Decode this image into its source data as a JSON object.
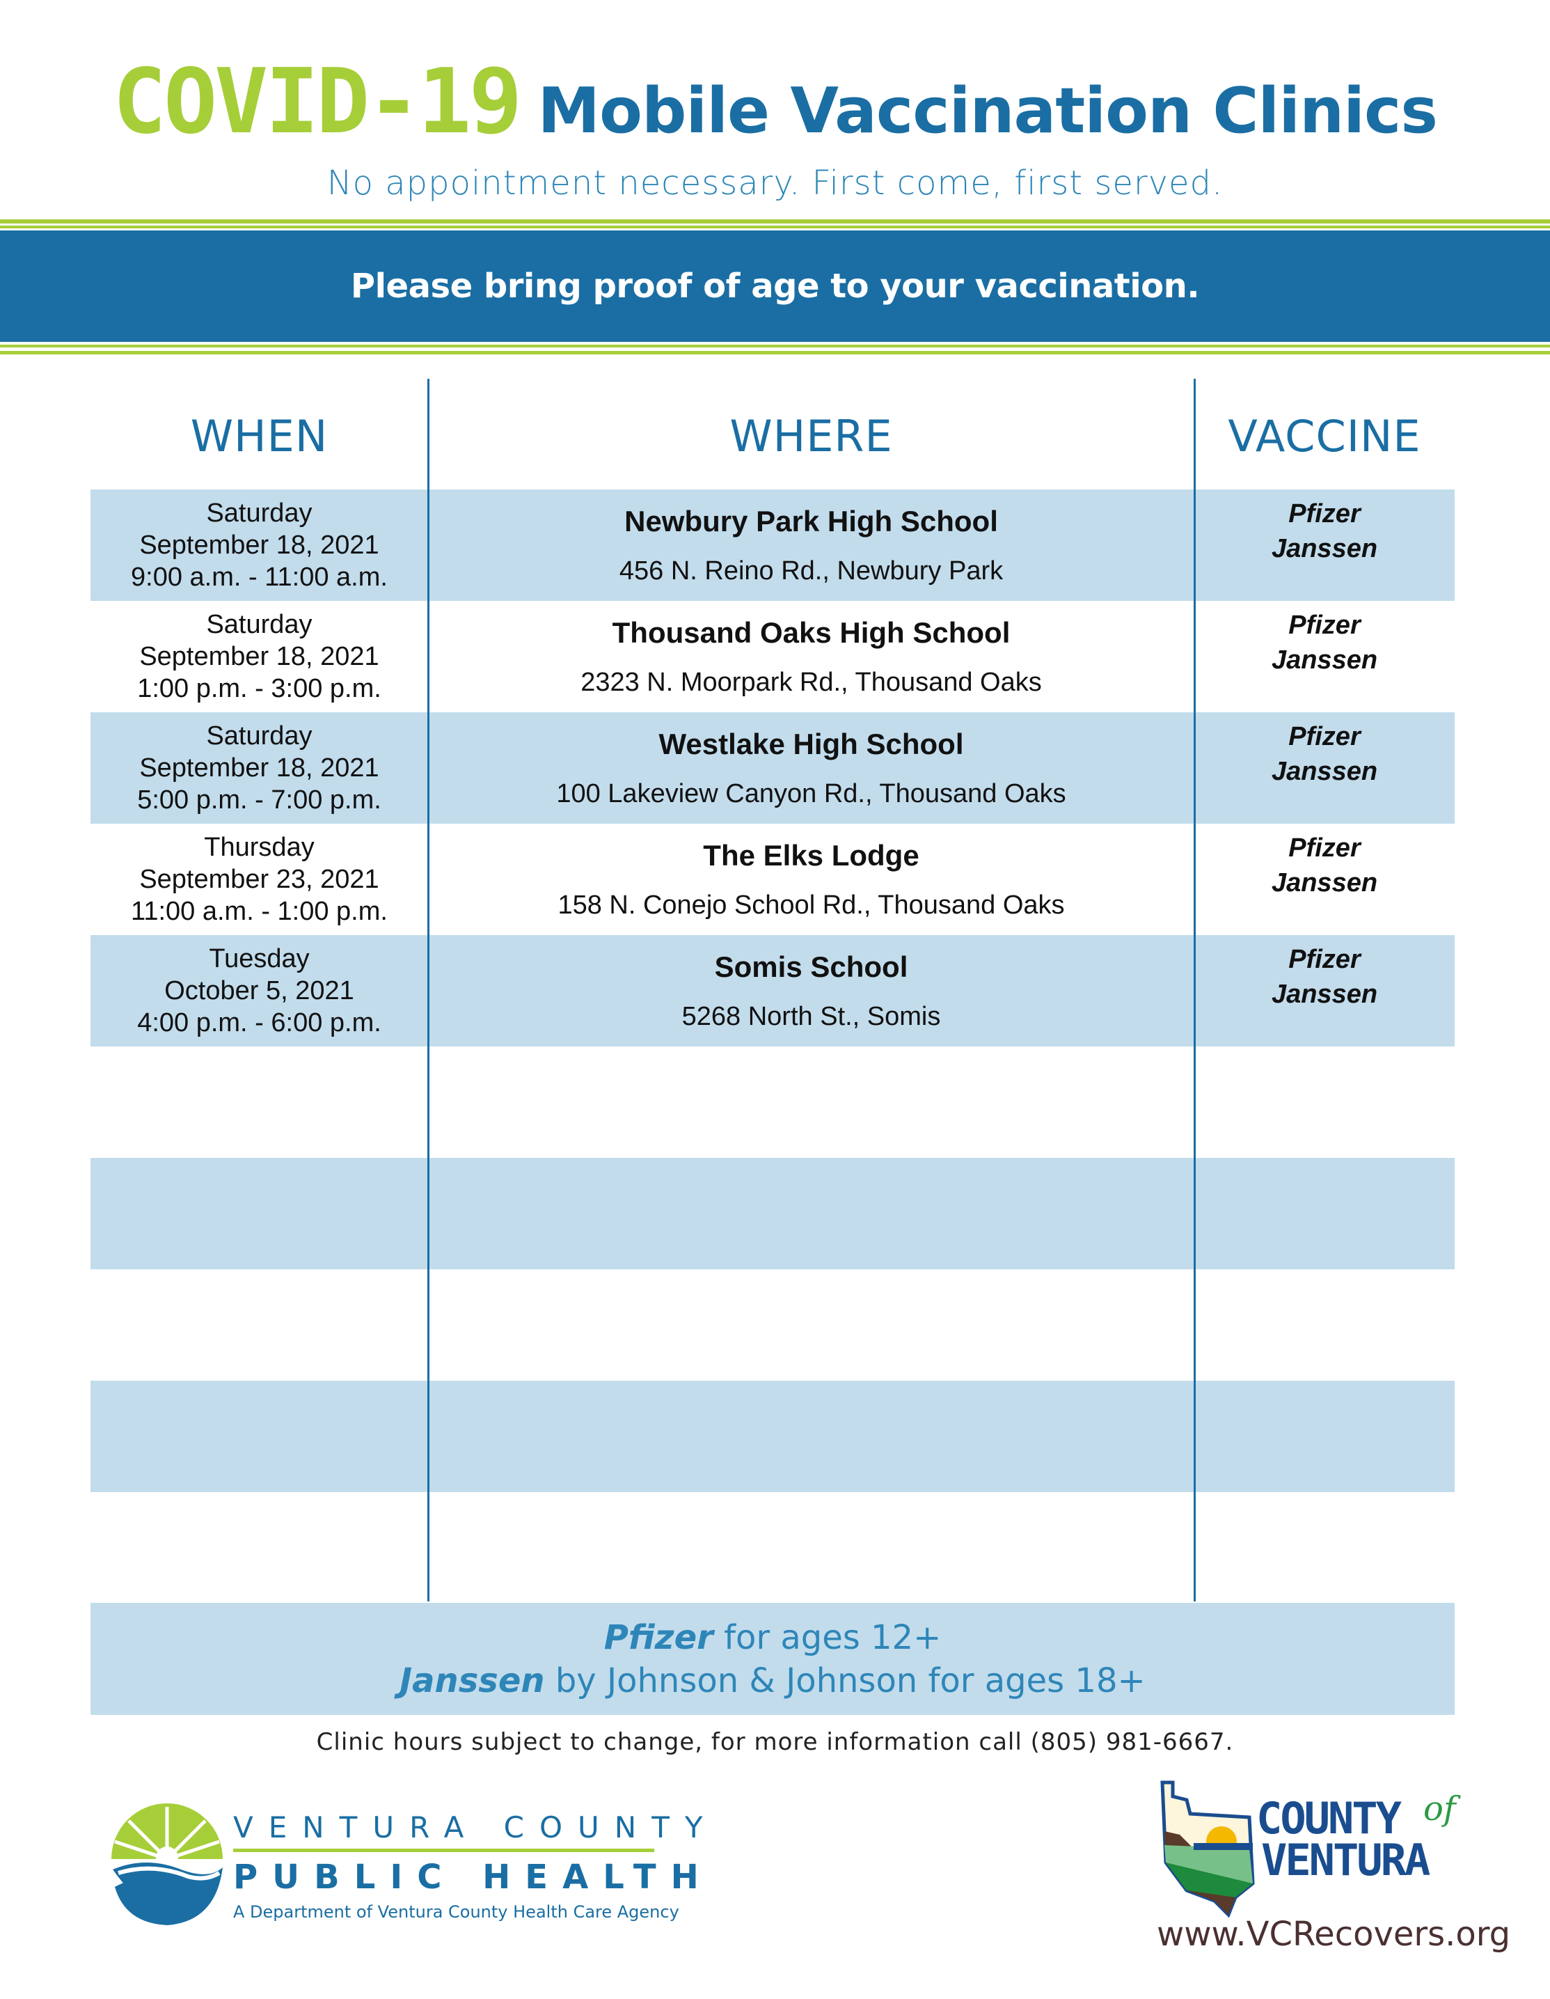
{
  "title": {
    "covid": "COVID-19",
    "rest": "Mobile Vaccination Clinics"
  },
  "subtitle": "No appointment necessary. First come, first served.",
  "banner": "Please bring proof of age to your vaccination.",
  "columns": [
    "WHEN",
    "WHERE",
    "VACCINE"
  ],
  "rows": [
    {
      "day": "Saturday",
      "date": "September 18, 2021",
      "time": "9:00 a.m. - 11:00 a.m.",
      "place": "Newbury Park High School",
      "address": "456 N. Reino Rd., Newbury Park",
      "vaccines": [
        "Pfizer",
        "Janssen"
      ]
    },
    {
      "day": "Saturday",
      "date": "September 18, 2021",
      "time": "1:00 p.m. - 3:00 p.m.",
      "place": "Thousand Oaks High School",
      "address": "2323 N. Moorpark Rd., Thousand Oaks",
      "vaccines": [
        "Pfizer",
        "Janssen"
      ]
    },
    {
      "day": "Saturday",
      "date": "September 18, 2021",
      "time": "5:00 p.m. - 7:00 p.m.",
      "place": "Westlake High School",
      "address": "100 Lakeview Canyon Rd., Thousand Oaks",
      "vaccines": [
        "Pfizer",
        "Janssen"
      ]
    },
    {
      "day": "Thursday",
      "date": "September 23, 2021",
      "time": "11:00 a.m. - 1:00 p.m.",
      "place": "The Elks Lodge",
      "address": "158 N. Conejo School Rd., Thousand Oaks",
      "vaccines": [
        "Pfizer",
        "Janssen"
      ]
    },
    {
      "day": "Tuesday",
      "date": "October 5, 2021",
      "time": "4:00 p.m. - 6:00 p.m.",
      "place": "Somis School",
      "address": "5268 North St., Somis",
      "vaccines": [
        "Pfizer",
        "Janssen"
      ]
    }
  ],
  "footer": {
    "line1_brand": "Pfizer",
    "line1_rest": " for ages 12+",
    "line2_brand": "Janssen",
    "line2_rest": " by Johnson & Johnson for ages 18+"
  },
  "note": "Clinic hours subject to change, for more information call (805) 981-6667.",
  "logos": {
    "vcph": {
      "line1": "VENTURA COUNTY",
      "line2": "PUBLIC HEALTH",
      "line3": "A Department of Ventura County Health Care Agency"
    },
    "county": {
      "county": "COUNTY",
      "of": "of",
      "ventura": "VENTURA",
      "url": "www.VCRecovers.org"
    }
  },
  "colors": {
    "blue": "#1a6ea3",
    "green": "#a6ce39",
    "light_blue": "#c2dcec"
  }
}
